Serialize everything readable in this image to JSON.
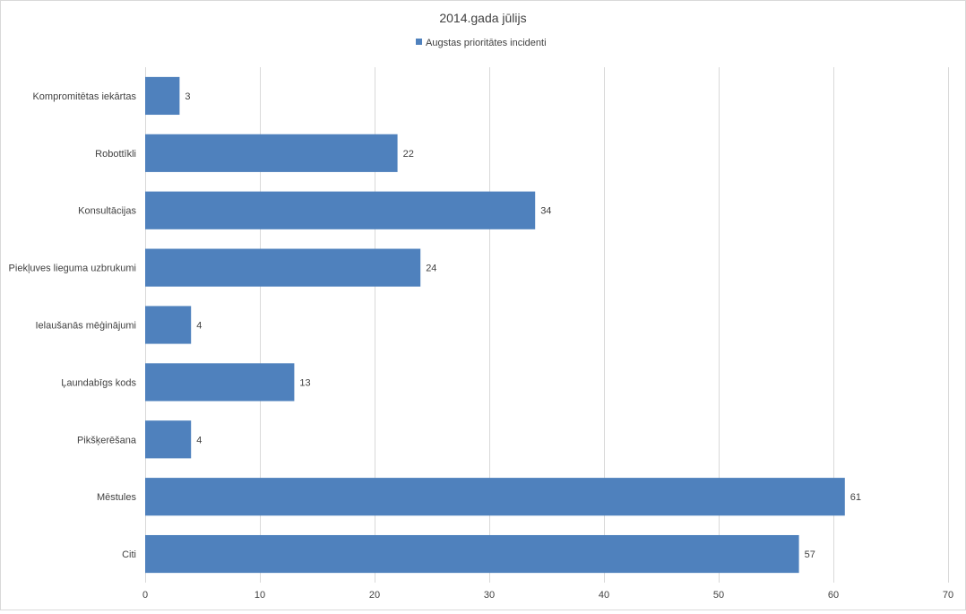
{
  "chart_data": {
    "type": "bar",
    "orientation": "horizontal",
    "title": "2014.gada jūlijs",
    "categories": [
      "Kompromitētas iekārtas",
      "Robottīkli",
      "Konsultācijas",
      "Piekļuves lieguma uzbrukumi",
      "Ielaušanās mēģinājumi",
      "Ļaundabīgs kods",
      "Pikšķerēšana",
      "Mēstules",
      "Citi"
    ],
    "series": [
      {
        "name": "Augstas prioritātes incidenti",
        "values": [
          3,
          22,
          34,
          24,
          4,
          13,
          4,
          61,
          57
        ],
        "color": "#4f81bd"
      }
    ],
    "x_ticks": [
      "0",
      "10",
      "20",
      "30",
      "40",
      "50",
      "60",
      "70"
    ],
    "xlim": [
      0,
      70
    ],
    "grid": true,
    "legend_position": "top",
    "colors": {
      "bar": "#4f81bd",
      "grid": "#d9d9d9",
      "text": "#404040"
    }
  }
}
